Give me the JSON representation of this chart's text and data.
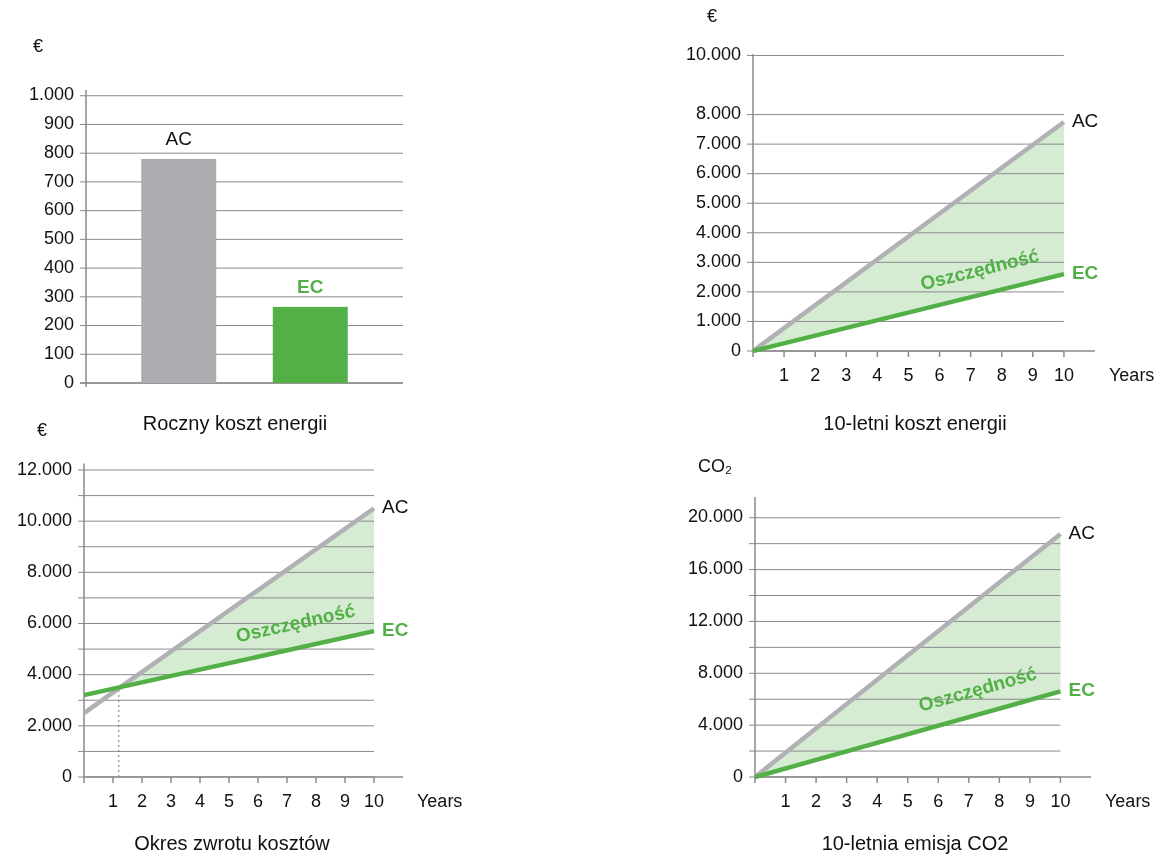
{
  "chart_data": [
    {
      "type": "bar",
      "title": "Roczny koszt energii",
      "ylabel": "€",
      "categories": [
        "AC",
        "EC"
      ],
      "values": [
        780,
        265
      ],
      "colors": [
        "#adadb1",
        "#52b046"
      ],
      "ylim": [
        0,
        1020
      ],
      "yticks": [
        0,
        100,
        200,
        300,
        400,
        500,
        600,
        700,
        800,
        900,
        {
          "value": 1000,
          "label": "1.000"
        }
      ],
      "grid": "y"
    },
    {
      "type": "line",
      "title": "10-letni koszt energii",
      "ylabel": "€",
      "xlabel": "Years",
      "xlim": [
        0,
        11
      ],
      "xticks": [
        1,
        2,
        3,
        4,
        5,
        6,
        7,
        8,
        9,
        10
      ],
      "ylim": [
        0,
        10050
      ],
      "yticks": [
        0,
        {
          "value": 1000,
          "label": "1.000"
        },
        {
          "value": 2000,
          "label": "2.000"
        },
        {
          "value": 3000,
          "label": "3.000"
        },
        {
          "value": 4000,
          "label": "4.000"
        },
        {
          "value": 5000,
          "label": "5.000"
        },
        {
          "value": 6000,
          "label": "6.000"
        },
        {
          "value": 7000,
          "label": "7.000"
        },
        {
          "value": 8000,
          "label": "8.000"
        },
        {
          "value": 10000,
          "label": "10.000"
        }
      ],
      "grid": "y",
      "series": [
        {
          "name": "AC",
          "color": "#b1b1b5",
          "x": [
            0,
            10
          ],
          "values": [
            0,
            7750
          ],
          "lower": [
            0,
            2600
          ],
          "upper": [
            0,
            7750
          ]
        },
        {
          "name": "EC",
          "color": "#52b046",
          "x": [
            0,
            10
          ],
          "values": [
            0,
            2600
          ]
        }
      ],
      "annotations": [
        "Oszczędność"
      ]
    },
    {
      "type": "line",
      "title": "Okres zwrotu kosztów",
      "ylabel": "€",
      "xlabel": "Years",
      "xlim": [
        0,
        11
      ],
      "xticks": [
        1,
        2,
        3,
        4,
        5,
        6,
        7,
        8,
        9,
        10
      ],
      "ylim": [
        0,
        12250
      ],
      "yticks": [
        0,
        {
          "value": 1000,
          "label": null
        },
        {
          "value": 2000,
          "label": "2.000"
        },
        {
          "value": 3000,
          "label": null
        },
        {
          "value": 4000,
          "label": "4.000"
        },
        {
          "value": 5000,
          "label": null
        },
        {
          "value": 6000,
          "label": "6.000"
        },
        {
          "value": 7000,
          "label": null
        },
        {
          "value": 8000,
          "label": "8.000"
        },
        {
          "value": 9000,
          "label": null
        },
        {
          "value": 10000,
          "label": "10.000"
        },
        {
          "value": 11000,
          "label": null
        },
        {
          "value": 12000,
          "label": "12.000"
        }
      ],
      "grid": "y",
      "series": [
        {
          "name": "AC",
          "color": "#b1b1b5",
          "x": [
            0,
            1.27,
            10
          ],
          "values": [
            2500,
            3520,
            10500
          ],
          "lower": [
            null,
            3520,
            5700
          ],
          "upper": [
            null,
            3520,
            10500
          ]
        },
        {
          "name": "EC",
          "color": "#52b046",
          "x": [
            0,
            10
          ],
          "values": [
            3200,
            5700
          ]
        }
      ],
      "ref_lines": [
        {
          "axis": "x",
          "value": 1.2,
          "color": "#777777",
          "line_style": "dotted"
        }
      ],
      "annotations": [
        "Oszczędność"
      ]
    },
    {
      "type": "line",
      "title": "10-letnia emisja CO2",
      "ylabel": "CO₂",
      "xlabel": "Years",
      "xlim": [
        0,
        11
      ],
      "xticks": [
        1,
        2,
        3,
        4,
        5,
        6,
        7,
        8,
        9,
        10
      ],
      "ylim": [
        0,
        21600
      ],
      "yticks": [
        0,
        {
          "value": 2000,
          "label": null
        },
        {
          "value": 4000,
          "label": "4.000"
        },
        {
          "value": 6000,
          "label": null
        },
        {
          "value": 8000,
          "label": "8.000"
        },
        {
          "value": 10000,
          "label": null
        },
        {
          "value": 12000,
          "label": "12.000"
        },
        {
          "value": 14000,
          "label": null
        },
        {
          "value": 16000,
          "label": "16.000"
        },
        {
          "value": 18000,
          "label": null
        },
        {
          "value": 20000,
          "label": "20.000"
        }
      ],
      "grid": "y",
      "series": [
        {
          "name": "AC",
          "color": "#b1b1b5",
          "x": [
            0,
            10
          ],
          "values": [
            0,
            18750
          ],
          "lower": [
            0,
            6600
          ],
          "upper": [
            0,
            18750
          ]
        },
        {
          "name": "EC",
          "color": "#52b046",
          "x": [
            0,
            10
          ],
          "values": [
            0,
            6600
          ]
        }
      ],
      "annotations": [
        "Oszczędność"
      ]
    }
  ]
}
